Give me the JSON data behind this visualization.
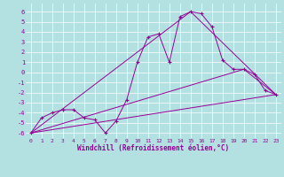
{
  "bg_color": "#b3e0e0",
  "line_color": "#990099",
  "grid_color": "#ffffff",
  "xlabel": "Windchill (Refroidissement éolien,°C)",
  "xlabel_color": "#990099",
  "xtick_color": "#990099",
  "ytick_color": "#990099",
  "xlim": [
    -0.5,
    23.5
  ],
  "ylim": [
    -6.5,
    6.8
  ],
  "xticks": [
    0,
    1,
    2,
    3,
    4,
    5,
    6,
    7,
    8,
    9,
    10,
    11,
    12,
    13,
    14,
    15,
    16,
    17,
    18,
    19,
    20,
    21,
    22,
    23
  ],
  "yticks": [
    -6,
    -5,
    -4,
    -3,
    -2,
    -1,
    0,
    1,
    2,
    3,
    4,
    5,
    6
  ],
  "line1_x": [
    0,
    1,
    2,
    3,
    4,
    5,
    6,
    7,
    8,
    9,
    10,
    11,
    12,
    13,
    14,
    15,
    16,
    17,
    18,
    19,
    20,
    21,
    22,
    23
  ],
  "line1_y": [
    -6.0,
    -4.5,
    -4.0,
    -3.7,
    -3.7,
    -4.5,
    -4.7,
    -6.0,
    -4.8,
    -2.7,
    1.0,
    3.5,
    3.8,
    1.0,
    5.5,
    6.0,
    5.8,
    4.5,
    1.2,
    0.3,
    0.3,
    -0.2,
    -1.8,
    -2.2
  ],
  "line2_x": [
    0,
    23
  ],
  "line2_y": [
    -6.0,
    -2.2
  ],
  "line3_x": [
    0,
    20,
    23
  ],
  "line3_y": [
    -6.0,
    0.3,
    -2.2
  ],
  "line4_x": [
    0,
    15,
    23
  ],
  "line4_y": [
    -6.0,
    6.0,
    -2.2
  ]
}
